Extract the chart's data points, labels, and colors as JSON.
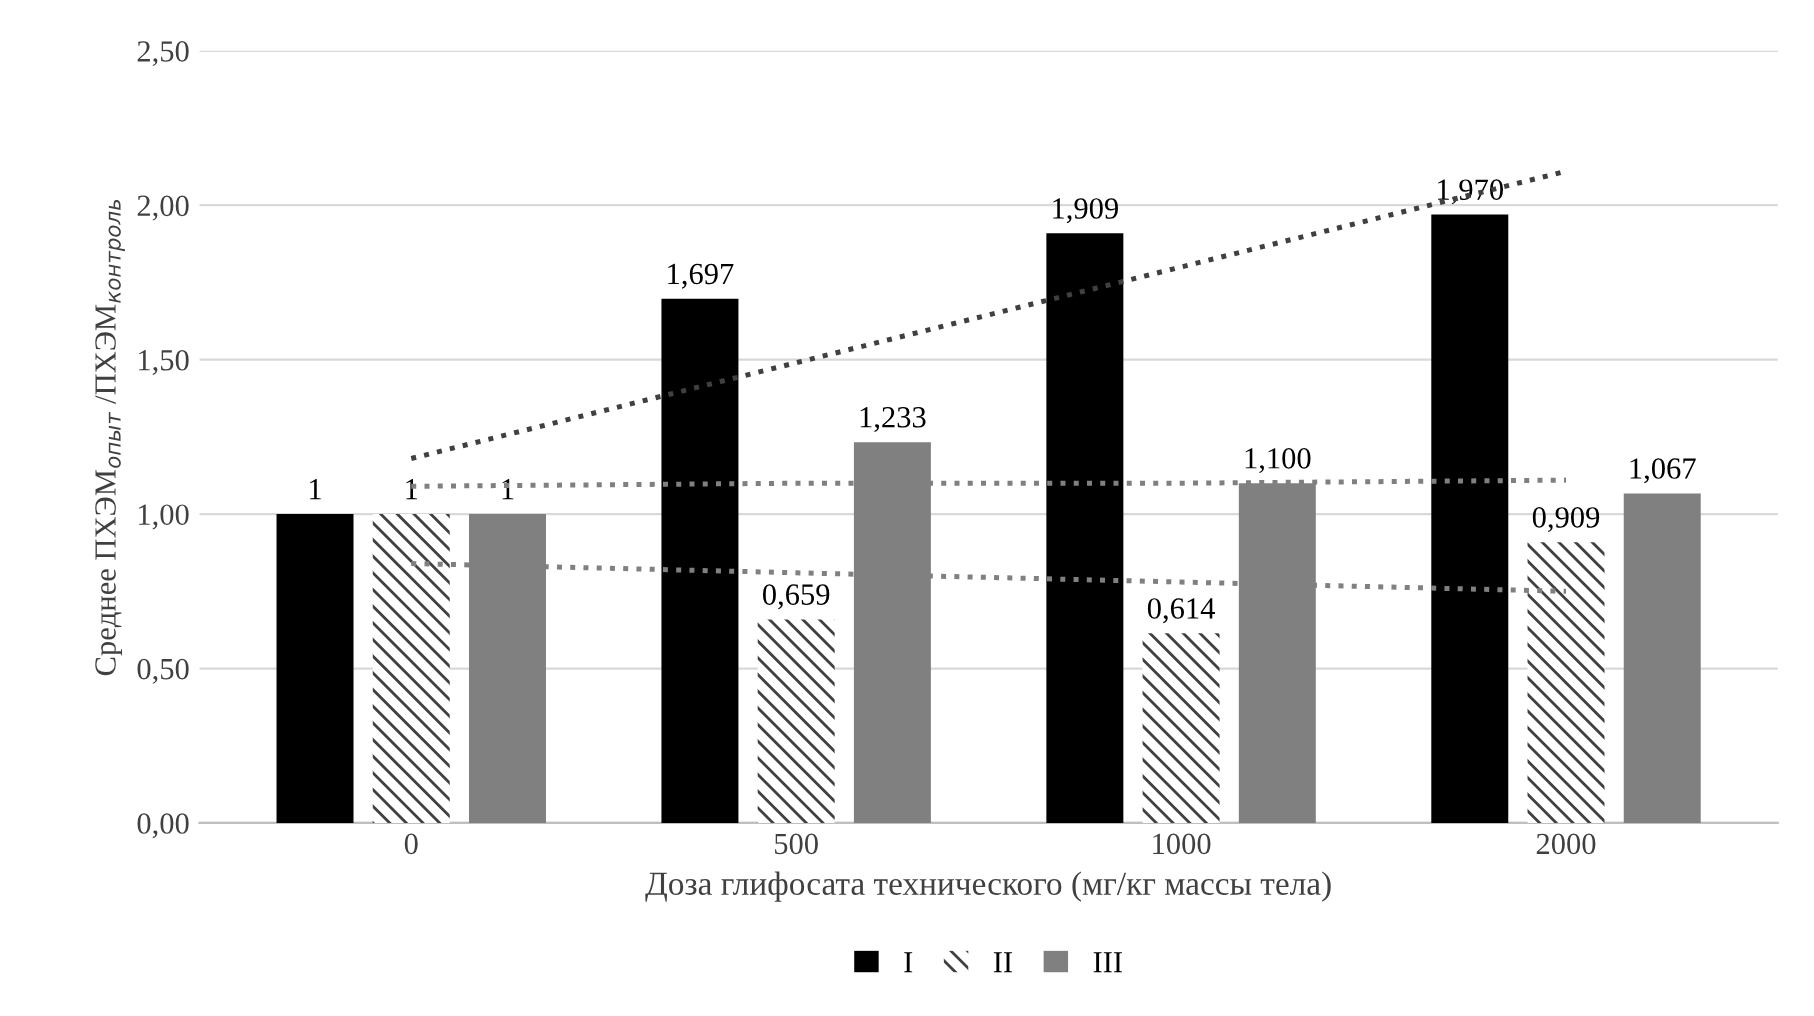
{
  "chart_data": {
    "type": "bar",
    "xlabel": "Доза глифосата технического (мг/кг массы тела)",
    "ylabel": "Среднее ПХЭМ$_{опыт}$ /ПХЭМ$_{контроль}$",
    "categories": [
      "0",
      "500",
      "1000",
      "2000"
    ],
    "series": [
      {
        "name": "I",
        "color": "#000000",
        "values": [
          1,
          1.697,
          1.909,
          1.97
        ],
        "value_labels": [
          "1",
          "1,697",
          "1,909",
          "1,970"
        ]
      },
      {
        "name": "II",
        "color": "#404040",
        "values": [
          1,
          0.659,
          0.614,
          0.909
        ],
        "value_labels": [
          "1",
          "0,659",
          "0,614",
          "0,909"
        ]
      },
      {
        "name": "III",
        "color": "#808080",
        "values": [
          1,
          1.233,
          1.1,
          1.067
        ],
        "value_labels": [
          "1",
          "1,233",
          "1,100",
          "1,067"
        ]
      },
      {
        "type": "line",
        "color": "#404040",
        "line_style": "dotted",
        "values": [
          1.18,
          1.49,
          1.8,
          2.11
        ]
      },
      {
        "type": "line",
        "color": "#808080",
        "line_style": "dotted",
        "values": [
          0.84,
          0.81,
          0.78,
          0.75
        ]
      },
      {
        "type": "line",
        "color": "#808080",
        "line_style": "dotted",
        "values": [
          1.09,
          1.1,
          1.1,
          1.11
        ]
      }
    ],
    "ylim": [
      0,
      2.5
    ],
    "yticks": [
      {
        "value": 0,
        "label": "0,00"
      },
      {
        "value": 0.5,
        "label": "0,50"
      },
      {
        "value": 1,
        "label": "1,00"
      },
      {
        "value": 1.5,
        "label": "1,50"
      },
      {
        "value": 2,
        "label": "2,00"
      },
      {
        "value": 2.5,
        "label": "2,50"
      }
    ],
    "grid": "y",
    "legend": "bottom"
  }
}
